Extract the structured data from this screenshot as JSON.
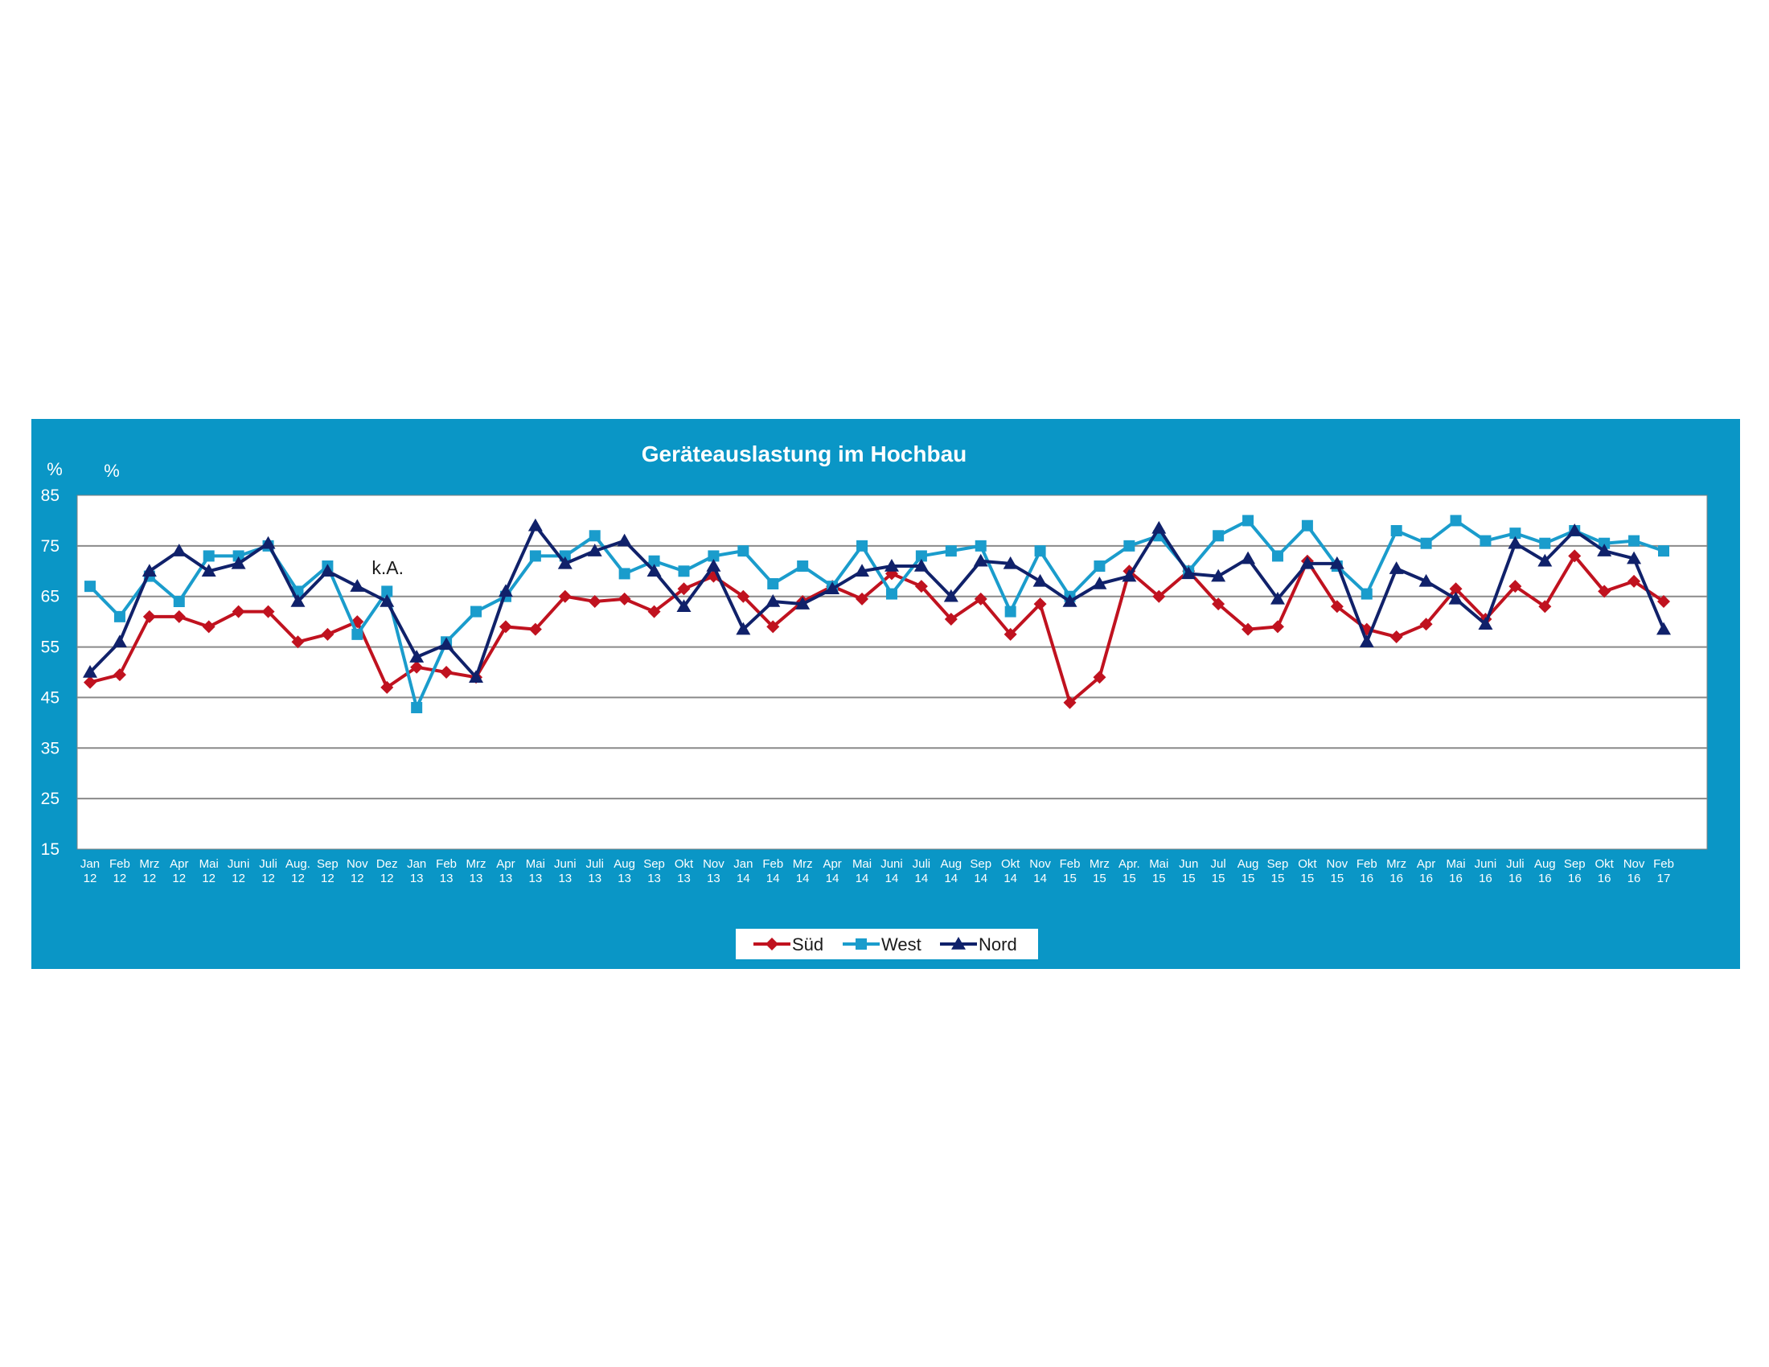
{
  "chart_data": {
    "type": "line",
    "title": "Geräteauslastung im Hochbau",
    "unit_labels": [
      "%",
      "%"
    ],
    "ylim": [
      15,
      85
    ],
    "yticks": [
      15,
      25,
      35,
      45,
      55,
      65,
      75,
      85
    ],
    "grid": true,
    "legend_position": "bottom-center",
    "categories": [
      [
        "Jan",
        "12"
      ],
      [
        "Feb",
        "12"
      ],
      [
        "Mrz",
        "12"
      ],
      [
        "Apr",
        "12"
      ],
      [
        "Mai",
        "12"
      ],
      [
        "Juni",
        "12"
      ],
      [
        "Juli",
        "12"
      ],
      [
        "Aug.",
        "12"
      ],
      [
        "Sep",
        "12"
      ],
      [
        "Nov",
        "12"
      ],
      [
        "Dez",
        "12"
      ],
      [
        "Jan",
        "13"
      ],
      [
        "Feb",
        "13"
      ],
      [
        "Mrz",
        "13"
      ],
      [
        "Apr",
        "13"
      ],
      [
        "Mai",
        "13"
      ],
      [
        "Juni",
        "13"
      ],
      [
        "Juli",
        "13"
      ],
      [
        "Aug",
        "13"
      ],
      [
        "Sep",
        "13"
      ],
      [
        "Okt",
        "13"
      ],
      [
        "Nov",
        "13"
      ],
      [
        "Jan",
        "14"
      ],
      [
        "Feb",
        "14"
      ],
      [
        "Mrz",
        "14"
      ],
      [
        "Apr",
        "14"
      ],
      [
        "Mai",
        "14"
      ],
      [
        "Juni",
        "14"
      ],
      [
        "Juli",
        "14"
      ],
      [
        "Aug",
        "14"
      ],
      [
        "Sep",
        "14"
      ],
      [
        "Okt",
        "14"
      ],
      [
        "Nov",
        "14"
      ],
      [
        "Feb",
        "15"
      ],
      [
        "Mrz",
        "15"
      ],
      [
        "Apr.",
        "15"
      ],
      [
        "Mai",
        "15"
      ],
      [
        "Jun",
        "15"
      ],
      [
        "Jul",
        "15"
      ],
      [
        "Aug",
        "15"
      ],
      [
        "Sep",
        "15"
      ],
      [
        "Okt",
        "15"
      ],
      [
        "Nov",
        "15"
      ],
      [
        "Feb",
        "16"
      ],
      [
        "Mrz",
        "16"
      ],
      [
        "Apr",
        "16"
      ],
      [
        "Mai",
        "16"
      ],
      [
        "Juni",
        "16"
      ],
      [
        "Juli",
        "16"
      ],
      [
        "Aug",
        "16"
      ],
      [
        "Sep",
        "16"
      ],
      [
        "Okt",
        "16"
      ],
      [
        "Nov",
        "16"
      ],
      [
        "Feb",
        "17"
      ]
    ],
    "series": [
      {
        "name": "Süd",
        "color": "#C0121F",
        "marker": "diamond",
        "values": [
          48,
          49.5,
          61,
          61,
          59,
          62,
          62,
          56,
          57.5,
          60,
          47,
          51,
          50,
          49,
          59,
          58.5,
          65,
          64,
          64.5,
          62,
          66.5,
          69,
          65,
          59,
          64,
          67,
          64.5,
          69.5,
          67,
          60.5,
          64.5,
          57.5,
          63.5,
          44,
          49,
          70,
          65,
          70,
          63.5,
          58.5,
          59,
          72,
          63,
          58.5,
          57,
          59.5,
          66.5,
          60.5,
          67,
          63,
          73,
          66,
          68,
          64
        ]
      },
      {
        "name": "West",
        "color": "#1A9CCC",
        "marker": "square",
        "values": [
          67,
          61,
          69,
          64,
          73,
          73,
          75,
          66,
          71,
          57.5,
          66,
          43,
          56,
          62,
          65,
          73,
          73,
          77,
          69.5,
          72,
          70,
          73,
          74,
          67.5,
          71,
          67,
          75,
          65.5,
          73,
          74,
          75,
          62,
          74,
          65,
          71,
          75,
          77,
          70,
          77,
          80,
          73,
          79,
          71,
          65.5,
          78,
          75.5,
          80,
          76,
          77.5,
          75.5,
          78,
          75.5,
          76,
          74
        ]
      },
      {
        "name": "Nord",
        "color": "#10216A",
        "marker": "triangle",
        "values": [
          50,
          56,
          70,
          74,
          70,
          71.5,
          75.5,
          64,
          70,
          67,
          64,
          53,
          55.5,
          49,
          66,
          79,
          71.5,
          74,
          76,
          70,
          63,
          71,
          58.5,
          64,
          63.5,
          66.5,
          70,
          71,
          71,
          65,
          72,
          71.5,
          68,
          64,
          67.5,
          69,
          78.5,
          69.5,
          69,
          72.5,
          64.5,
          71.5,
          71.5,
          56,
          70.5,
          68,
          64.5,
          59.5,
          75.5,
          72,
          78,
          74,
          72.5,
          58.5
        ]
      }
    ],
    "annotations": [
      {
        "text": "k.A.",
        "x_index": 11
      }
    ]
  }
}
